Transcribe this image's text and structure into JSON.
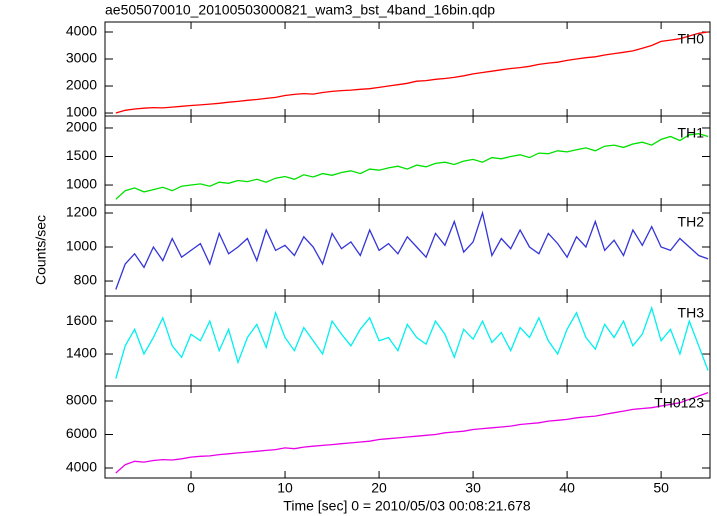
{
  "title": "ae505070010_20100503000821_wam3_bst_4band_16bin.qdp",
  "xlabel": "Time [sec] 0 = 2010/05/03 00:08:21.678",
  "ylabel": "Counts/sec",
  "chart_data": [
    {
      "type": "line",
      "x": [
        -8,
        -7,
        -6,
        -5,
        -4,
        -3,
        -2,
        -1,
        0,
        1,
        2,
        3,
        4,
        5,
        6,
        7,
        8,
        9,
        10,
        11,
        12,
        13,
        14,
        15,
        16,
        17,
        18,
        19,
        20,
        21,
        22,
        23,
        24,
        25,
        26,
        27,
        28,
        29,
        30,
        31,
        32,
        33,
        34,
        35,
        36,
        37,
        38,
        39,
        40,
        41,
        42,
        43,
        44,
        45,
        46,
        47,
        48,
        49,
        50,
        51,
        52,
        53,
        54,
        55
      ],
      "series": [
        {
          "name": "TH0",
          "color": "#ff0000",
          "values": [
            1000,
            1100,
            1150,
            1180,
            1200,
            1190,
            1220,
            1250,
            1280,
            1300,
            1330,
            1360,
            1400,
            1430,
            1470,
            1500,
            1540,
            1580,
            1650,
            1690,
            1720,
            1700,
            1760,
            1800,
            1830,
            1850,
            1880,
            1900,
            1950,
            2000,
            2050,
            2100,
            2180,
            2200,
            2250,
            2280,
            2320,
            2380,
            2450,
            2500,
            2550,
            2600,
            2650,
            2680,
            2730,
            2800,
            2850,
            2880,
            2950,
            3000,
            3050,
            3080,
            3150,
            3200,
            3250,
            3300,
            3400,
            3500,
            3650,
            3700,
            3750,
            3850,
            3950,
            4000
          ]
        }
      ],
      "ylim": [
        890,
        4370
      ],
      "yticks": [
        1000,
        2000,
        3000,
        4000
      ]
    },
    {
      "type": "line",
      "x": [
        -8,
        -7,
        -6,
        -5,
        -4,
        -3,
        -2,
        -1,
        0,
        1,
        2,
        3,
        4,
        5,
        6,
        7,
        8,
        9,
        10,
        11,
        12,
        13,
        14,
        15,
        16,
        17,
        18,
        19,
        20,
        21,
        22,
        23,
        24,
        25,
        26,
        27,
        28,
        29,
        30,
        31,
        32,
        33,
        34,
        35,
        36,
        37,
        38,
        39,
        40,
        41,
        42,
        43,
        44,
        45,
        46,
        47,
        48,
        49,
        50,
        51,
        52,
        53,
        54,
        55
      ],
      "series": [
        {
          "name": "TH1",
          "color": "#00e000",
          "values": [
            750,
            900,
            950,
            880,
            920,
            960,
            900,
            980,
            1000,
            1020,
            980,
            1050,
            1030,
            1080,
            1060,
            1100,
            1050,
            1120,
            1150,
            1100,
            1180,
            1140,
            1200,
            1170,
            1220,
            1250,
            1200,
            1280,
            1260,
            1300,
            1330,
            1280,
            1350,
            1320,
            1380,
            1400,
            1360,
            1420,
            1450,
            1400,
            1480,
            1460,
            1500,
            1530,
            1480,
            1560,
            1550,
            1600,
            1580,
            1620,
            1650,
            1600,
            1680,
            1700,
            1660,
            1720,
            1750,
            1700,
            1800,
            1850,
            1780,
            1880,
            1900,
            1850
          ]
        }
      ],
      "ylim": [
        650,
        2210
      ],
      "yticks": [
        1000,
        1500,
        2000
      ]
    },
    {
      "type": "line",
      "x": [
        -8,
        -7,
        -6,
        -5,
        -4,
        -3,
        -2,
        -1,
        0,
        1,
        2,
        3,
        4,
        5,
        6,
        7,
        8,
        9,
        10,
        11,
        12,
        13,
        14,
        15,
        16,
        17,
        18,
        19,
        20,
        21,
        22,
        23,
        24,
        25,
        26,
        27,
        28,
        29,
        30,
        31,
        32,
        33,
        34,
        35,
        36,
        37,
        38,
        39,
        40,
        41,
        42,
        43,
        44,
        45,
        46,
        47,
        48,
        49,
        50,
        51,
        52,
        53,
        54,
        55
      ],
      "series": [
        {
          "name": "TH2",
          "color": "#3535d8",
          "values": [
            750,
            900,
            960,
            880,
            1000,
            920,
            1050,
            940,
            980,
            1020,
            900,
            1080,
            960,
            1000,
            1050,
            920,
            1100,
            980,
            1010,
            950,
            1060,
            1000,
            900,
            1080,
            990,
            1030,
            950,
            1100,
            980,
            1020,
            960,
            1060,
            1000,
            940,
            1080,
            1010,
            1150,
            970,
            1030,
            1200,
            950,
            1050,
            990,
            1100,
            1000,
            960,
            1080,
            1020,
            940,
            1060,
            1000,
            1150,
            980,
            1040,
            950,
            1100,
            1010,
            1120,
            1000,
            980,
            1050,
            1000,
            950,
            930
          ]
        }
      ],
      "ylim": [
        712,
        1247
      ],
      "yticks": [
        800,
        1000,
        1200
      ]
    },
    {
      "type": "line",
      "x": [
        -8,
        -7,
        -6,
        -5,
        -4,
        -3,
        -2,
        -1,
        0,
        1,
        2,
        3,
        4,
        5,
        6,
        7,
        8,
        9,
        10,
        11,
        12,
        13,
        14,
        15,
        16,
        17,
        18,
        19,
        20,
        21,
        22,
        23,
        24,
        25,
        26,
        27,
        28,
        29,
        30,
        31,
        32,
        33,
        34,
        35,
        36,
        37,
        38,
        39,
        40,
        41,
        42,
        43,
        44,
        45,
        46,
        47,
        48,
        49,
        50,
        51,
        52,
        53,
        54,
        55
      ],
      "series": [
        {
          "name": "TH3",
          "color": "#00f0f0",
          "values": [
            1250,
            1450,
            1550,
            1400,
            1500,
            1620,
            1450,
            1380,
            1520,
            1480,
            1600,
            1420,
            1550,
            1350,
            1500,
            1580,
            1440,
            1650,
            1500,
            1420,
            1560,
            1480,
            1400,
            1600,
            1520,
            1450,
            1550,
            1620,
            1480,
            1500,
            1420,
            1580,
            1500,
            1460,
            1600,
            1520,
            1380,
            1550,
            1490,
            1600,
            1470,
            1530,
            1420,
            1560,
            1500,
            1620,
            1480,
            1400,
            1550,
            1650,
            1500,
            1430,
            1580,
            1500,
            1600,
            1450,
            1520,
            1680,
            1480,
            1550,
            1400,
            1600,
            1450,
            1300
          ]
        }
      ],
      "ylim": [
        1206,
        1752
      ],
      "yticks": [
        1400,
        1600
      ]
    },
    {
      "type": "line",
      "x": [
        -8,
        -7,
        -6,
        -5,
        -4,
        -3,
        -2,
        -1,
        0,
        1,
        2,
        3,
        4,
        5,
        6,
        7,
        8,
        9,
        10,
        11,
        12,
        13,
        14,
        15,
        16,
        17,
        18,
        19,
        20,
        21,
        22,
        23,
        24,
        25,
        26,
        27,
        28,
        29,
        30,
        31,
        32,
        33,
        34,
        35,
        36,
        37,
        38,
        39,
        40,
        41,
        42,
        43,
        44,
        45,
        46,
        47,
        48,
        49,
        50,
        51,
        52,
        53,
        54,
        55
      ],
      "series": [
        {
          "name": "TH0123",
          "color": "#e800e8",
          "values": [
            3700,
            4200,
            4400,
            4350,
            4450,
            4500,
            4480,
            4550,
            4650,
            4700,
            4720,
            4800,
            4850,
            4900,
            4950,
            5000,
            5050,
            5100,
            5200,
            5150,
            5250,
            5300,
            5350,
            5400,
            5450,
            5500,
            5550,
            5600,
            5700,
            5750,
            5800,
            5850,
            5900,
            5950,
            6000,
            6100,
            6150,
            6200,
            6300,
            6350,
            6400,
            6450,
            6500,
            6600,
            6650,
            6700,
            6800,
            6850,
            6900,
            7000,
            7050,
            7100,
            7200,
            7300,
            7400,
            7500,
            7550,
            7600,
            7700,
            7800,
            7900,
            8100,
            8300,
            8500
          ]
        }
      ],
      "ylim": [
        3403,
        8896
      ],
      "yticks": [
        4000,
        6000,
        8000
      ],
      "xlim": [
        -9.15,
        55.2
      ],
      "xticks": [
        0,
        10,
        20,
        30,
        40,
        50
      ]
    }
  ]
}
